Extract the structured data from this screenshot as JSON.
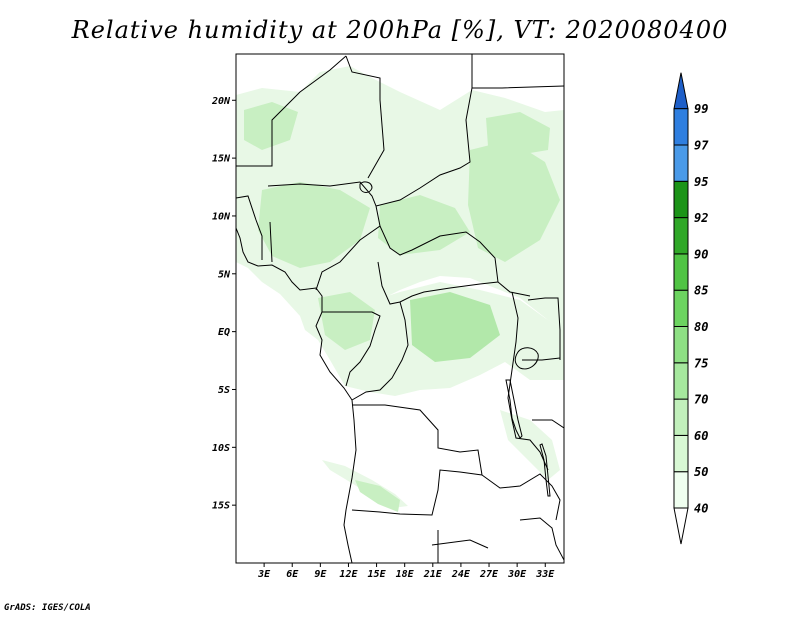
{
  "title": "Relative humidity at 200hPa [%], VT: 2020080400",
  "credit": "GrADS: IGES/COLA",
  "map": {
    "lon_range": [
      0,
      35
    ],
    "lat_range": [
      -20,
      24
    ],
    "lon_ticks": [
      {
        "value": 3,
        "label": "3E"
      },
      {
        "value": 6,
        "label": "6E"
      },
      {
        "value": 9,
        "label": "9E"
      },
      {
        "value": 12,
        "label": "12E"
      },
      {
        "value": 15,
        "label": "15E"
      },
      {
        "value": 18,
        "label": "18E"
      },
      {
        "value": 21,
        "label": "21E"
      },
      {
        "value": 24,
        "label": "24E"
      },
      {
        "value": 27,
        "label": "27E"
      },
      {
        "value": 30,
        "label": "30E"
      },
      {
        "value": 33,
        "label": "33E"
      }
    ],
    "lat_ticks": [
      {
        "value": 20,
        "label": "20N"
      },
      {
        "value": 15,
        "label": "15N"
      },
      {
        "value": 10,
        "label": "10N"
      },
      {
        "value": 5,
        "label": "5N"
      },
      {
        "value": 0,
        "label": "EQ"
      },
      {
        "value": -5,
        "label": "5S"
      },
      {
        "value": -10,
        "label": "10S"
      },
      {
        "value": -15,
        "label": "15S"
      }
    ]
  },
  "colorbar": {
    "levels": [
      {
        "label": "40",
        "color": "#f0fff0"
      },
      {
        "label": "50",
        "color": "#d8f8d4"
      },
      {
        "label": "60",
        "color": "#c2f0bc"
      },
      {
        "label": "70",
        "color": "#a6e89e"
      },
      {
        "label": "75",
        "color": "#8ee084"
      },
      {
        "label": "80",
        "color": "#6cd460"
      },
      {
        "label": "85",
        "color": "#50c444"
      },
      {
        "label": "90",
        "color": "#30a828"
      },
      {
        "label": "92",
        "color": "#1c9418"
      },
      {
        "label": "95",
        "color": "#4a9ae8"
      },
      {
        "label": "97",
        "color": "#2f7fe0"
      },
      {
        "label": "99",
        "color": "#1e5fc8"
      }
    ],
    "top_cap_color": "#1e5fc8",
    "bottom_cap_color": "#ffffff"
  },
  "field_colors": {
    "light": "#e8f8e6",
    "mid": "#c8efc2",
    "dark": "#b2e8aa"
  }
}
